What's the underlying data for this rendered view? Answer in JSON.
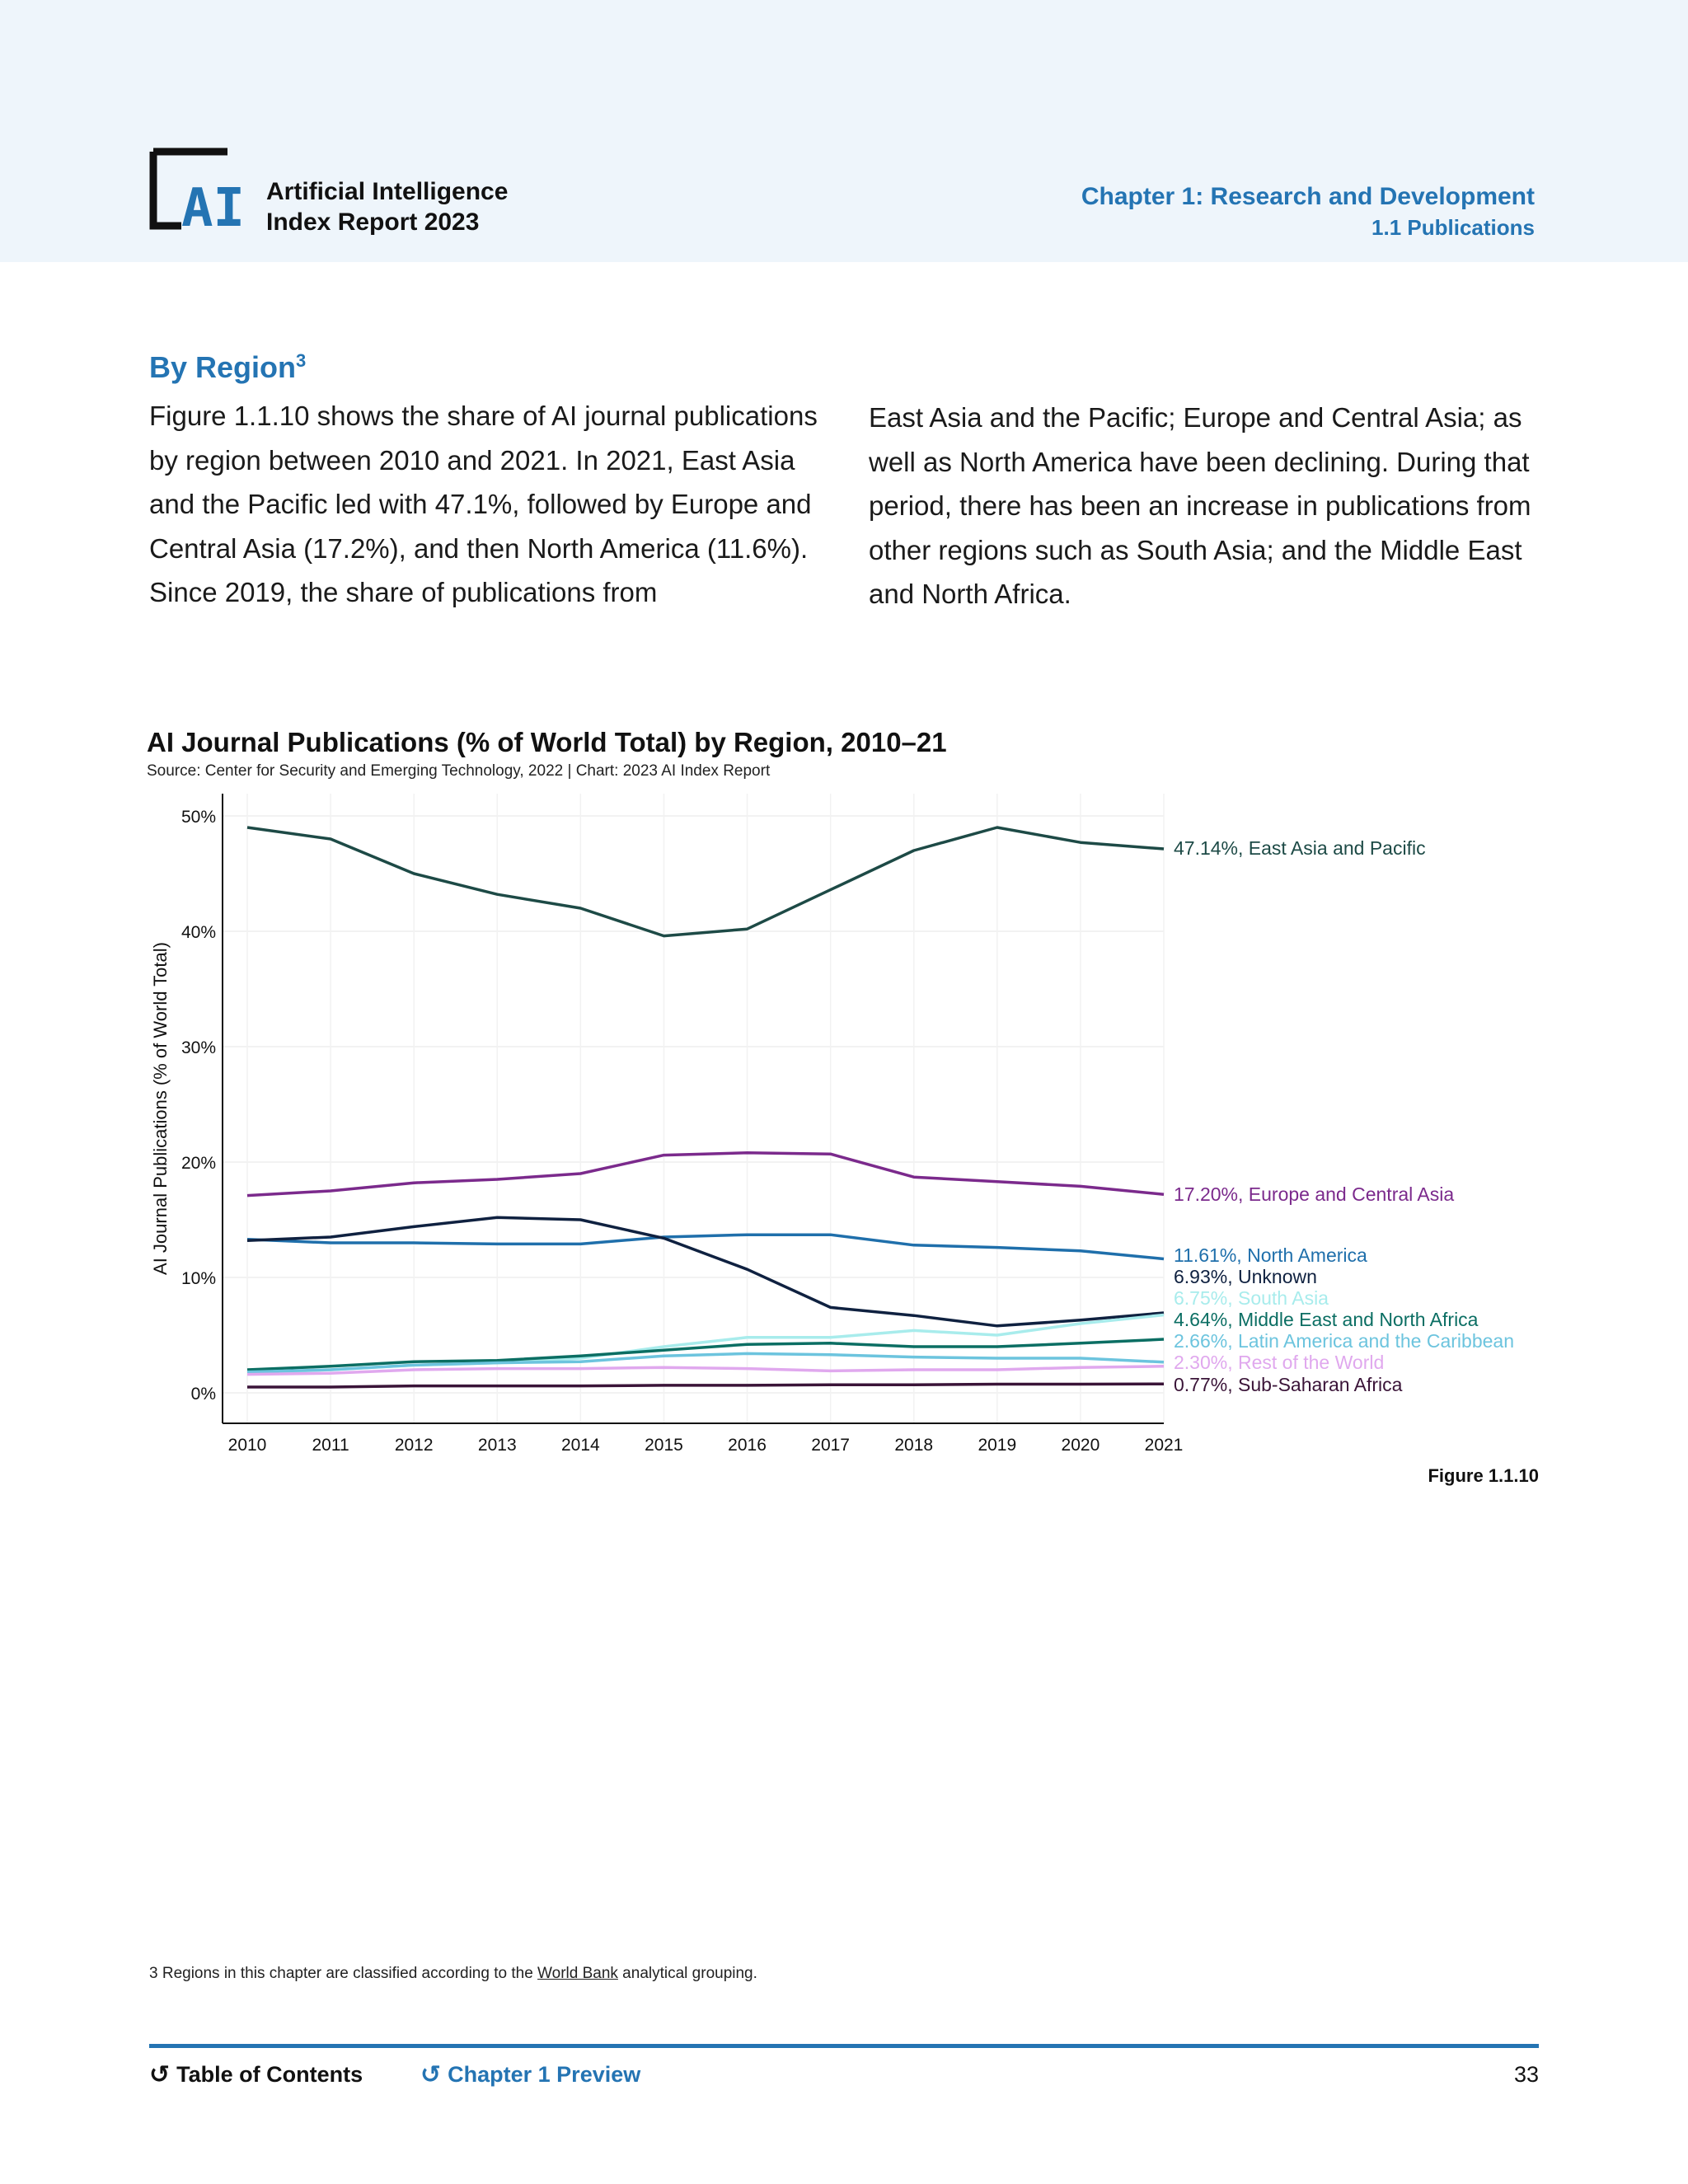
{
  "header": {
    "report_line1": "Artificial Intelligence",
    "report_line2": "Index Report 2023",
    "chapter": "Chapter 1: Research and Development",
    "section": "1.1 Publications",
    "logo_text": "AI"
  },
  "body": {
    "heading": "By Region",
    "heading_sup": "3",
    "paragraph_left": "Figure 1.1.10 shows the share of AI journal publications by region between 2010 and 2021. In 2021, East Asia and the Pacific led with 47.1%, followed by Europe and Central Asia (17.2%), and then North America (11.6%). Since 2019, the share of publications from",
    "paragraph_right": "East Asia and the Pacific; Europe and Central Asia; as well as North America have been declining. During that period, there has been an increase in publications from other regions such as South Asia; and the Middle East and North Africa."
  },
  "chart_data": {
    "type": "line",
    "title": "AI Journal Publications (% of World Total) by Region, 2010–21",
    "source": "Source: Center for Security and Emerging Technology, 2022 | Chart: 2023 AI Index Report",
    "ylabel": "AI Journal Publications (% of World Total)",
    "xlabel": "",
    "x": [
      "2010",
      "2011",
      "2012",
      "2013",
      "2014",
      "2015",
      "2016",
      "2017",
      "2018",
      "2019",
      "2020",
      "2021"
    ],
    "ylim": [
      0,
      50
    ],
    "yticks": [
      "0%",
      "10%",
      "20%",
      "30%",
      "40%",
      "50%"
    ],
    "grid": true,
    "series": [
      {
        "name": "East Asia and Pacific",
        "label": "47.14%, East Asia and Pacific",
        "color": "#1d4a46",
        "values": [
          49.0,
          48.0,
          45.0,
          43.2,
          42.0,
          39.6,
          40.2,
          43.6,
          47.0,
          49.0,
          47.7,
          47.14
        ]
      },
      {
        "name": "Europe and Central Asia",
        "label": "17.20%, Europe and Central Asia",
        "color": "#7b2a8c",
        "values": [
          17.1,
          17.5,
          18.2,
          18.5,
          19.0,
          20.6,
          20.8,
          20.7,
          18.7,
          18.3,
          17.9,
          17.2
        ]
      },
      {
        "name": "North America",
        "label": "11.61%, North America",
        "color": "#1f6fab",
        "values": [
          13.3,
          13.0,
          13.0,
          12.9,
          12.9,
          13.5,
          13.7,
          13.7,
          12.8,
          12.6,
          12.3,
          11.61
        ]
      },
      {
        "name": "Unknown",
        "label": "6.93%, Unknown",
        "color": "#0f2140",
        "values": [
          13.2,
          13.5,
          14.4,
          15.2,
          15.0,
          13.4,
          10.7,
          7.4,
          6.7,
          5.8,
          6.3,
          6.93
        ]
      },
      {
        "name": "South Asia",
        "label": "6.75%, South Asia",
        "color": "#a8ecec",
        "values": [
          1.7,
          2.0,
          2.4,
          2.6,
          3.0,
          4.0,
          4.8,
          4.8,
          5.4,
          5.0,
          6.0,
          6.75
        ]
      },
      {
        "name": "Middle East and North Africa",
        "label": "4.64%, Middle East and North Africa",
        "color": "#0b6e63",
        "values": [
          2.0,
          2.3,
          2.7,
          2.8,
          3.2,
          3.7,
          4.2,
          4.3,
          4.0,
          4.0,
          4.3,
          4.64
        ]
      },
      {
        "name": "Latin America and the Caribbean",
        "label": "2.66%, Latin America and the Caribbean",
        "color": "#6cc4de",
        "values": [
          1.8,
          2.0,
          2.4,
          2.6,
          2.7,
          3.2,
          3.4,
          3.3,
          3.1,
          3.0,
          3.0,
          2.66
        ]
      },
      {
        "name": "Rest of the World",
        "label": "2.30%, Rest of the World",
        "color": "#e0a8ee",
        "values": [
          1.6,
          1.7,
          2.0,
          2.1,
          2.1,
          2.2,
          2.1,
          1.9,
          2.0,
          2.0,
          2.2,
          2.3
        ]
      },
      {
        "name": "Sub-Saharan Africa",
        "label": "0.77%, Sub-Saharan Africa",
        "color": "#3a1438",
        "values": [
          0.5,
          0.5,
          0.6,
          0.6,
          0.6,
          0.65,
          0.65,
          0.7,
          0.7,
          0.75,
          0.75,
          0.77
        ]
      }
    ]
  },
  "figure_label": "Figure 1.1.10",
  "footnote": {
    "prefix": "3 Regions in this chapter are classified according to the ",
    "link": "World Bank",
    "suffix": " analytical grouping."
  },
  "footer": {
    "toc": "Table of Contents",
    "preview": "Chapter 1 Preview",
    "page": "33"
  }
}
